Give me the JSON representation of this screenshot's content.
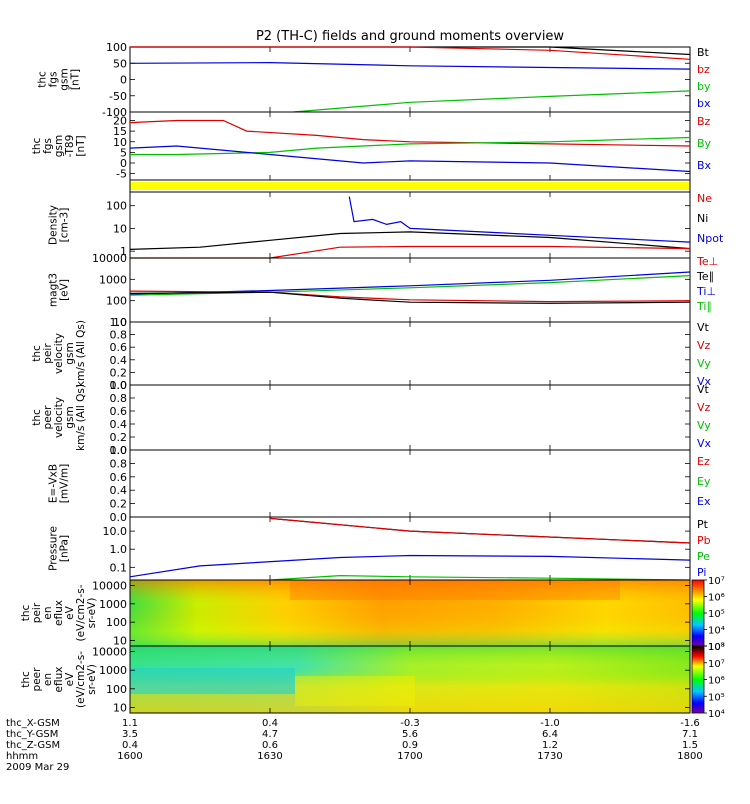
{
  "title": "P2 (TH-C) fields and ground moments overview",
  "colors": {
    "black": "#000000",
    "red": "#e00000",
    "green": "#00c000",
    "blue": "#0000e0",
    "yellow": "#ffff00"
  },
  "chart_data": [
    {
      "id": "fgs",
      "type": "line",
      "ylabel": [
        "thc",
        "fgs",
        "gsm",
        "[nT]"
      ],
      "ylim": [
        -100,
        100
      ],
      "yticks": [
        "100",
        "50",
        "0",
        "-50",
        "-100"
      ],
      "legend": [
        {
          "label": "Bt",
          "color": "#000000"
        },
        {
          "label": "bz",
          "color": "#e00000"
        },
        {
          "label": "by",
          "color": "#00c000"
        },
        {
          "label": "bx",
          "color": "#0000e0"
        }
      ],
      "series": [
        {
          "name": "Bt",
          "color": "#000000",
          "x": [
            1600,
            1700,
            1730,
            1800
          ],
          "y": [
            150,
            105,
            100,
            77
          ]
        },
        {
          "name": "bz",
          "color": "#e00000",
          "x": [
            1600,
            1700,
            1730,
            1800
          ],
          "y": [
            140,
            102,
            90,
            62
          ]
        },
        {
          "name": "by",
          "color": "#00c000",
          "x": [
            1635,
            1700,
            1730,
            1800
          ],
          "y": [
            -100,
            -70,
            -52,
            -35
          ]
        },
        {
          "name": "bx",
          "color": "#0000e0",
          "x": [
            1600,
            1630,
            1700,
            1730,
            1800
          ],
          "y": [
            50,
            52,
            42,
            37,
            32
          ]
        }
      ]
    },
    {
      "id": "fgs_t89",
      "type": "line",
      "ylabel": [
        "thc",
        "fgs",
        "gsm",
        "-T89",
        "[nT]"
      ],
      "ylim": [
        -8,
        24
      ],
      "yticks": [
        "20",
        "15",
        "10",
        "5",
        "0",
        "-5"
      ],
      "legend": [
        {
          "label": "Bz",
          "color": "#e00000"
        },
        {
          "label": "By",
          "color": "#00c000"
        },
        {
          "label": "Bx",
          "color": "#0000e0"
        }
      ],
      "series": [
        {
          "name": "Bz",
          "color": "#e00000",
          "x": [
            1600,
            1610,
            1620,
            1625,
            1640,
            1650,
            1700,
            1730,
            1800
          ],
          "y": [
            19,
            20,
            20,
            15,
            13,
            11,
            10,
            9,
            8
          ]
        },
        {
          "name": "By",
          "color": "#00c000",
          "x": [
            1600,
            1610,
            1630,
            1640,
            1700,
            1730,
            1800
          ],
          "y": [
            4,
            4,
            5,
            7,
            9,
            10,
            12
          ]
        },
        {
          "name": "Bx",
          "color": "#0000e0",
          "x": [
            1600,
            1610,
            1630,
            1650,
            1700,
            1730,
            1800
          ],
          "y": [
            7,
            8,
            4,
            0,
            1,
            0,
            -4
          ]
        }
      ]
    },
    {
      "id": "mode_bar",
      "type": "bar",
      "values": []
    },
    {
      "id": "density",
      "type": "line",
      "log": true,
      "ylabel": [
        "Density",
        "[cm-3]"
      ],
      "ylim": [
        0.5,
        400
      ],
      "yticks": [
        "100",
        "10",
        "1"
      ],
      "legend": [
        {
          "label": "Ne",
          "color": "#e00000"
        },
        {
          "label": "Ni",
          "color": "#000000"
        },
        {
          "label": "Npot",
          "color": "#0000e0"
        }
      ],
      "series": [
        {
          "name": "Ni",
          "color": "#000000",
          "x": [
            1600,
            1615,
            1630,
            1645,
            1700,
            1730,
            1800
          ],
          "y": [
            1.2,
            1.5,
            3,
            6,
            7,
            4,
            1.3
          ]
        },
        {
          "name": "Ne",
          "color": "#e00000",
          "x": [
            1600,
            1630,
            1645,
            1700,
            1730,
            1800
          ],
          "y": [
            0.5,
            0.5,
            1.5,
            1.6,
            1.6,
            1.3
          ]
        },
        {
          "name": "Npot",
          "color": "#0000e0",
          "x": [
            1647,
            1648,
            1652,
            1655,
            1658,
            1700,
            1730,
            1800
          ],
          "y": [
            250,
            20,
            25,
            15,
            20,
            10,
            5,
            2.5
          ]
        }
      ]
    },
    {
      "id": "temperature",
      "type": "line",
      "log": true,
      "ylabel": [
        "magt3",
        "[eV]"
      ],
      "ylim": [
        10,
        10000
      ],
      "yticks": [
        "10000",
        "1000",
        "100",
        "10"
      ],
      "legend": [
        {
          "label": "Te⊥",
          "color": "#e00000"
        },
        {
          "label": "Te∥",
          "color": "#000000"
        },
        {
          "label": "Ti⊥",
          "color": "#0000e0"
        },
        {
          "label": "Ti∥",
          "color": "#00c000"
        }
      ],
      "series": [
        {
          "name": "Ti⊥",
          "color": "#0000e0",
          "x": [
            1600,
            1630,
            1700,
            1730,
            1800
          ],
          "y": [
            200,
            300,
            500,
            900,
            2200
          ]
        },
        {
          "name": "Ti∥",
          "color": "#00c000",
          "x": [
            1600,
            1630,
            1700,
            1730,
            1800
          ],
          "y": [
            180,
            250,
            400,
            700,
            1500
          ]
        },
        {
          "name": "Te⊥",
          "color": "#e00000",
          "x": [
            1600,
            1630,
            1645,
            1700,
            1730,
            1800
          ],
          "y": [
            280,
            250,
            150,
            110,
            90,
            100
          ]
        },
        {
          "name": "Te∥",
          "color": "#000000",
          "x": [
            1600,
            1630,
            1645,
            1700,
            1730,
            1800
          ],
          "y": [
            220,
            250,
            130,
            85,
            75,
            85
          ]
        }
      ]
    },
    {
      "id": "peir_velocity",
      "type": "line",
      "ylabel": [
        "thc",
        "peir",
        "velocity",
        "gsm",
        "km/s (All Qs)"
      ],
      "ylim": [
        0,
        1
      ],
      "yticks": [
        "1.0",
        "0.8",
        "0.6",
        "0.4",
        "0.2",
        "0.0"
      ],
      "legend": [
        {
          "label": "Vt",
          "color": "#000000"
        },
        {
          "label": "Vz",
          "color": "#e00000"
        },
        {
          "label": "Vy",
          "color": "#00c000"
        },
        {
          "label": "Vx",
          "color": "#0000e0"
        }
      ],
      "series": []
    },
    {
      "id": "peer_velocity",
      "type": "line",
      "ylabel": [
        "thc",
        "peer",
        "velocity",
        "gsm",
        "km/s (All Qs)"
      ],
      "ylim": [
        0,
        1
      ],
      "yticks": [
        "1.0",
        "0.8",
        "0.6",
        "0.4",
        "0.2",
        "0.0"
      ],
      "legend": [
        {
          "label": "Vt",
          "color": "#000000"
        },
        {
          "label": "Vz",
          "color": "#e00000"
        },
        {
          "label": "Vy",
          "color": "#00c000"
        },
        {
          "label": "Vx",
          "color": "#0000e0"
        }
      ],
      "series": []
    },
    {
      "id": "efield",
      "type": "line",
      "ylabel": [
        "E=-VxB",
        "[mV/m]"
      ],
      "ylim": [
        0,
        1
      ],
      "yticks": [
        "1.0",
        "0.8",
        "0.6",
        "0.4",
        "0.2",
        "0.0"
      ],
      "legend": [
        {
          "label": "Ez",
          "color": "#e00000"
        },
        {
          "label": "Ey",
          "color": "#00c000"
        },
        {
          "label": "Ex",
          "color": "#0000e0"
        }
      ],
      "series": []
    },
    {
      "id": "pressure",
      "type": "line",
      "log": true,
      "ylabel": [
        "Pressure",
        "[nPa]"
      ],
      "ylim": [
        0.02,
        60
      ],
      "yticks": [
        "10.0",
        "1.0",
        "0.1"
      ],
      "legend": [
        {
          "label": "Pt",
          "color": "#000000"
        },
        {
          "label": "Pb",
          "color": "#e00000"
        },
        {
          "label": "Pe",
          "color": "#00c000"
        },
        {
          "label": "Pi",
          "color": "#0000e0"
        }
      ],
      "series": [
        {
          "name": "Pt",
          "color": "#000000",
          "x": [
            1630,
            1700,
            1800
          ],
          "y": [
            50,
            10,
            2.2
          ]
        },
        {
          "name": "Pb",
          "color": "#e00000",
          "x": [
            1630,
            1700,
            1800
          ],
          "y": [
            50,
            10,
            2.2
          ]
        },
        {
          "name": "Pi",
          "color": "#0000e0",
          "x": [
            1600,
            1615,
            1645,
            1700,
            1730,
            1800
          ],
          "y": [
            0.03,
            0.12,
            0.35,
            0.45,
            0.4,
            0.25
          ]
        },
        {
          "name": "Pe",
          "color": "#00c000",
          "x": [
            1630,
            1645,
            1700,
            1730,
            1800
          ],
          "y": [
            0.02,
            0.035,
            0.03,
            0.025,
            0.02
          ]
        }
      ]
    },
    {
      "id": "peir_spec",
      "type": "heatmap",
      "log": true,
      "ylabel": [
        "thc",
        "peir",
        "en",
        "eflux",
        "eV",
        "(eV/cm2-s-",
        "sr-eV)"
      ],
      "ylim": [
        5,
        20000
      ],
      "yticks": [
        "10000",
        "1000",
        "100",
        "10"
      ],
      "colorbar_ticks": [
        "10⁷",
        "10⁶",
        "10⁵",
        "10⁴",
        "10³"
      ],
      "colorbar_range": [
        1000,
        10000000
      ]
    },
    {
      "id": "peer_spec",
      "type": "heatmap",
      "log": true,
      "ylabel": [
        "thc",
        "peer",
        "en",
        "eflux",
        "eV",
        "(eV/cm2-s-",
        "sr-eV)"
      ],
      "ylim": [
        5,
        20000
      ],
      "yticks": [
        "10000",
        "1000",
        "100",
        "10"
      ],
      "colorbar_ticks": [
        "10⁸",
        "10⁷",
        "10⁶",
        "10⁵",
        "10⁴"
      ],
      "colorbar_range": [
        10000,
        100000000
      ]
    }
  ],
  "x_axis": {
    "range": [
      1600,
      1800
    ],
    "rows": [
      {
        "label": "thc_X-GSM",
        "values": [
          "1.1",
          "0.4",
          "-0.3",
          "-1.0",
          "-1.6"
        ]
      },
      {
        "label": "thc_Y-GSM",
        "values": [
          "3.5",
          "4.7",
          "5.6",
          "6.4",
          "7.1"
        ]
      },
      {
        "label": "thc_Z-GSM",
        "values": [
          "0.4",
          "0.6",
          "0.9",
          "1.2",
          "1.5"
        ]
      },
      {
        "label": "hhmm",
        "values": [
          "1600",
          "1630",
          "1700",
          "1730",
          "1800"
        ]
      }
    ],
    "date": "2009 Mar 29"
  }
}
